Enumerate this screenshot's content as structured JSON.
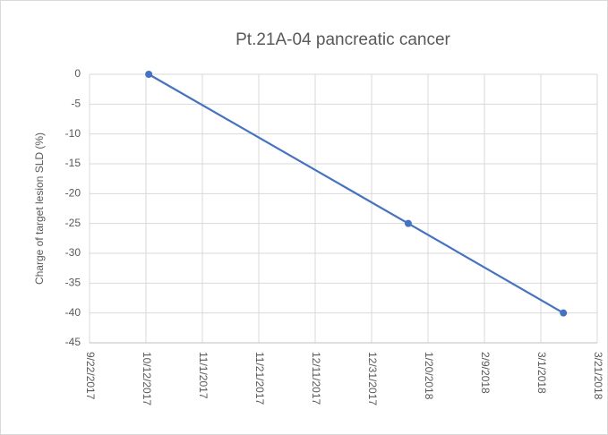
{
  "chart_data": {
    "type": "line",
    "title": "Pt.21A-04 pancreatic cancer",
    "y_label": "Charge of target lesion SLD (%)",
    "x": [
      "10/13/2017",
      "1/13/2018",
      "3/9/2018"
    ],
    "series": [
      {
        "name": "Pt.21A-04",
        "color": "#4472c4",
        "values": [
          0,
          -25,
          -40
        ]
      }
    ],
    "xlim": [
      "9/22/2017",
      "3/21/2018"
    ],
    "xticks": [
      "9/22/2017",
      "10/12/2017",
      "11/1/2017",
      "11/21/2017",
      "12/11/2017",
      "12/31/2017",
      "1/20/2018",
      "2/9/2018",
      "3/1/2018",
      "3/21/2018"
    ],
    "ylim": [
      -45,
      0
    ],
    "yticks": [
      0,
      -5,
      -10,
      -15,
      -20,
      -25,
      -30,
      -35,
      -40,
      -45
    ],
    "grid": true
  }
}
